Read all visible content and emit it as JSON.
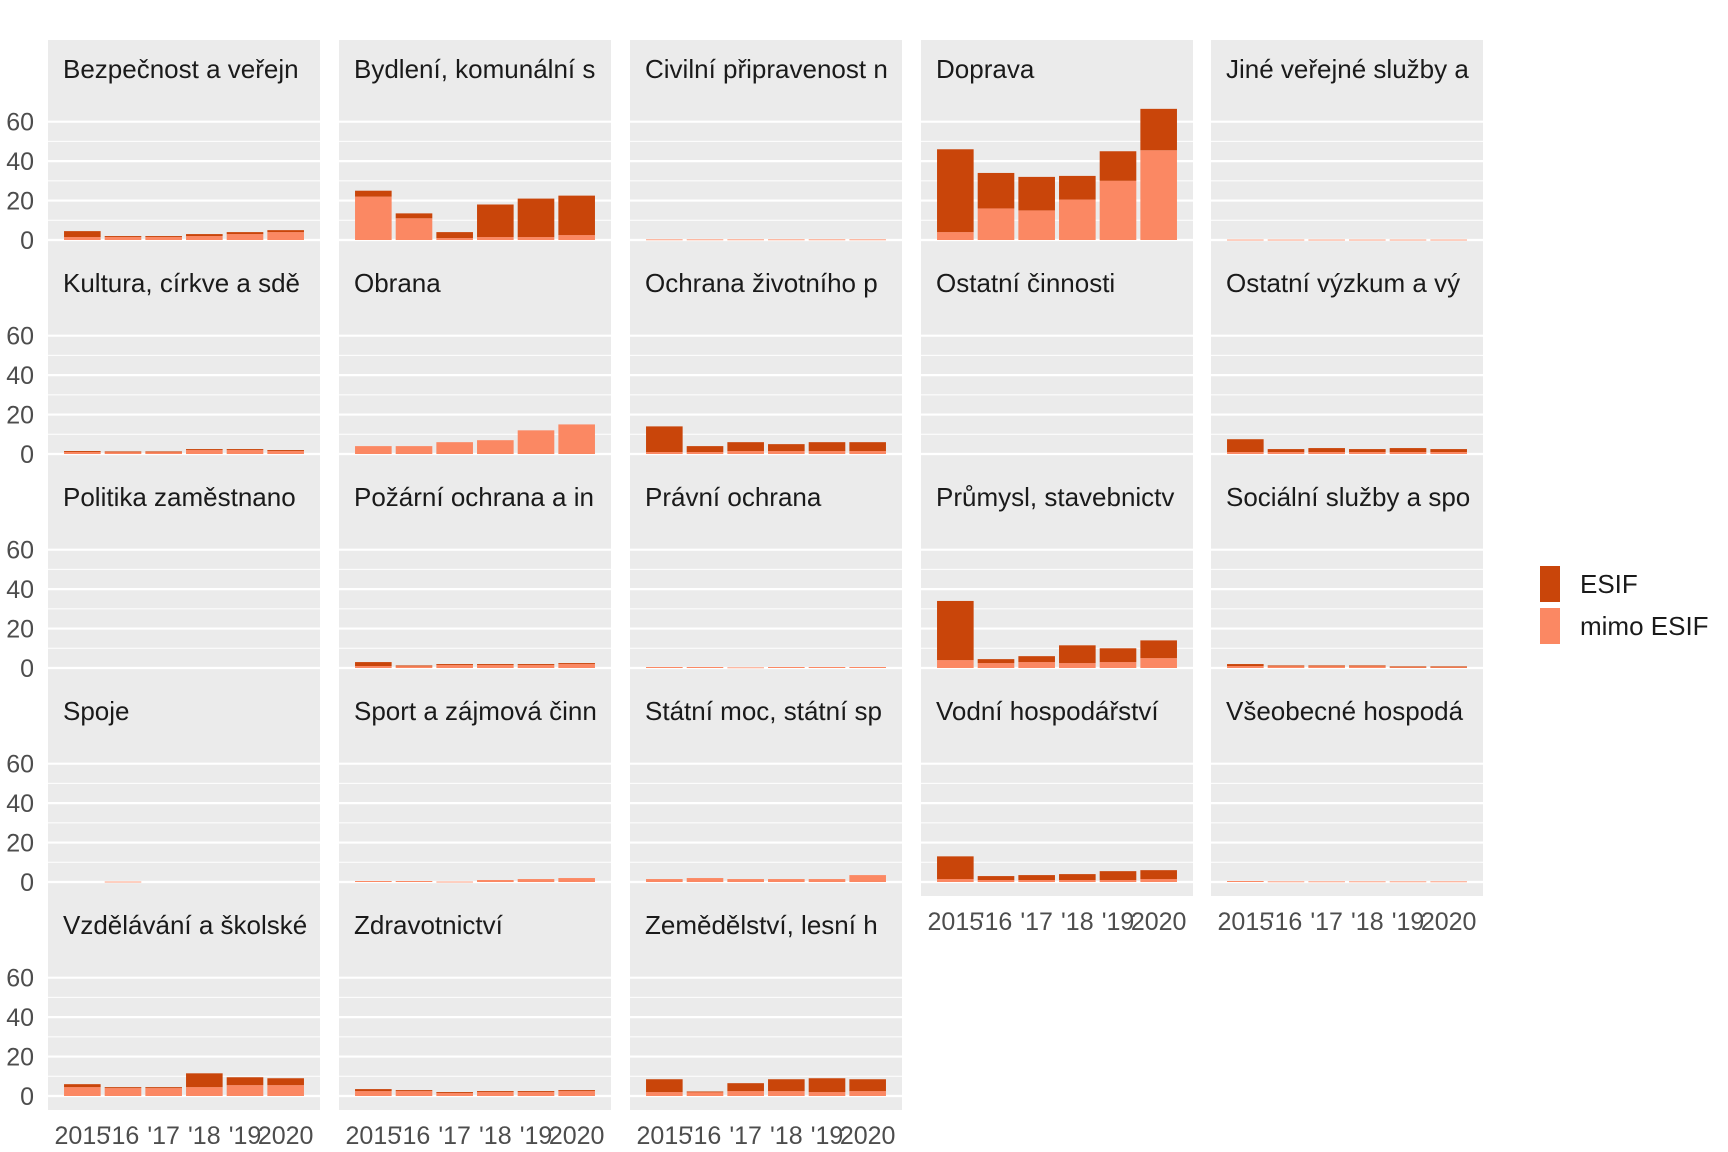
{
  "chart_data": {
    "type": "bar",
    "stacked": true,
    "categories": [
      "2015",
      "'16",
      "'17",
      "'18",
      "'19",
      "2020"
    ],
    "y_ticks": [
      0,
      20,
      40,
      60
    ],
    "ylim": [
      0,
      72
    ],
    "grid": true,
    "legend_position": "right",
    "series": [
      {
        "name": "ESIF",
        "color": "#c9450a"
      },
      {
        "name": "mimo ESIF",
        "color": "#fb8863"
      }
    ],
    "panels": [
      {
        "title": "Bezpečnost a veřejn",
        "esif": [
          3,
          0.5,
          0.5,
          1,
          1,
          1
        ],
        "mimo": [
          1.5,
          1.5,
          1.5,
          2,
          3,
          4
        ]
      },
      {
        "title": "Bydlení, komunální s",
        "esif": [
          3,
          2.5,
          3,
          16.5,
          19.5,
          20
        ],
        "mimo": [
          22,
          11,
          1,
          1.5,
          1.5,
          2.5
        ]
      },
      {
        "title": "Civilní připravenost n",
        "esif": [
          0,
          0,
          0,
          0,
          0,
          0
        ],
        "mimo": [
          0.3,
          0.3,
          0.3,
          0.3,
          0.3,
          0.3
        ]
      },
      {
        "title": "Doprava",
        "esif": [
          42,
          18,
          17,
          12,
          15,
          21
        ],
        "mimo": [
          4,
          16,
          15,
          20.5,
          30,
          45.5
        ]
      },
      {
        "title": "Jiné veřejné služby a",
        "esif": [
          0,
          0,
          0,
          0,
          0,
          0
        ],
        "mimo": [
          0.2,
          0.2,
          0.2,
          0.2,
          0.2,
          0.2
        ]
      },
      {
        "title": "Kultura, církve a sdě",
        "esif": [
          0.5,
          0.3,
          0.3,
          0.5,
          0.5,
          0.5
        ],
        "mimo": [
          1,
          1,
          1,
          2,
          2,
          1.5
        ]
      },
      {
        "title": "Obrana",
        "esif": [
          0,
          0,
          0,
          0,
          0,
          0
        ],
        "mimo": [
          4,
          4,
          6,
          7,
          12,
          15
        ]
      },
      {
        "title": "Ochrana životního p",
        "esif": [
          13,
          3,
          4.5,
          3.5,
          4.5,
          4.5
        ],
        "mimo": [
          1,
          1,
          1.5,
          1.5,
          1.5,
          1.5
        ]
      },
      {
        "title": "Ostatní činnosti",
        "esif": [
          0,
          0,
          0,
          0,
          0,
          0
        ],
        "mimo": [
          0,
          0,
          0,
          0,
          0,
          0
        ]
      },
      {
        "title": "Ostatní výzkum a vý",
        "esif": [
          6.5,
          1.5,
          2,
          1.5,
          2,
          1.5
        ],
        "mimo": [
          1,
          1,
          1,
          1,
          1,
          1
        ]
      },
      {
        "title": "Politika zaměstnano",
        "esif": [
          0,
          0,
          0,
          0,
          0,
          0
        ],
        "mimo": [
          0,
          0,
          0,
          0,
          0,
          0
        ]
      },
      {
        "title": "Požární ochrana a in",
        "esif": [
          2,
          0.3,
          0.5,
          0.5,
          0.5,
          0.5
        ],
        "mimo": [
          1,
          1,
          1.5,
          1.5,
          1.5,
          2
        ]
      },
      {
        "title": "Právní ochrana",
        "esif": [
          0,
          0,
          0,
          0,
          0,
          0
        ],
        "mimo": [
          0.5,
          0.5,
          0.3,
          0.5,
          0.5,
          0.5
        ]
      },
      {
        "title": "Průmysl, stavebnictv",
        "esif": [
          30,
          2,
          3,
          9,
          7,
          9
        ],
        "mimo": [
          4,
          2.5,
          3,
          2.5,
          3,
          5
        ]
      },
      {
        "title": "Sociální služby a spo",
        "esif": [
          1,
          0.3,
          0.3,
          0.3,
          0.3,
          0.3
        ],
        "mimo": [
          1,
          1,
          1,
          1,
          0.5,
          0.5
        ]
      },
      {
        "title": "Spoje",
        "esif": [
          0,
          0,
          0,
          0,
          0,
          0
        ],
        "mimo": [
          0,
          0.2,
          0,
          0,
          0,
          0
        ]
      },
      {
        "title": "Sport a zájmová činn",
        "esif": [
          0,
          0,
          0,
          0,
          0,
          0
        ],
        "mimo": [
          0.5,
          0.5,
          0.2,
          1,
          1.5,
          2
        ]
      },
      {
        "title": "Státní moc, státní sp",
        "esif": [
          0,
          0,
          0,
          0,
          0,
          0
        ],
        "mimo": [
          1.5,
          2,
          1.5,
          1.5,
          1.5,
          3.5
        ]
      },
      {
        "title": "Vodní hospodářství",
        "esif": [
          11.5,
          2,
          2.5,
          3,
          4.5,
          4.5
        ],
        "mimo": [
          1.5,
          1,
          1,
          1,
          1,
          1.5
        ]
      },
      {
        "title": "Všeobecné hospodá",
        "esif": [
          0,
          0,
          0,
          0,
          0,
          0
        ],
        "mimo": [
          0.5,
          0.3,
          0.3,
          0.3,
          0.3,
          0.3
        ]
      },
      {
        "title": "Vzdělávání a školské",
        "esif": [
          1.5,
          0.5,
          0.5,
          7,
          4,
          3.5
        ],
        "mimo": [
          4.5,
          4,
          4,
          4.5,
          5.5,
          5.5
        ]
      },
      {
        "title": "Zdravotnictví",
        "esif": [
          1,
          0.5,
          0.5,
          0.5,
          0.5,
          0.5
        ],
        "mimo": [
          2.5,
          2.5,
          1.5,
          2,
          2,
          2.5
        ]
      },
      {
        "title": "Zemědělství, lesní h",
        "esif": [
          6.5,
          0.3,
          4,
          6,
          7,
          6
        ],
        "mimo": [
          2,
          2,
          2.5,
          2.5,
          2,
          2.5
        ]
      }
    ]
  }
}
